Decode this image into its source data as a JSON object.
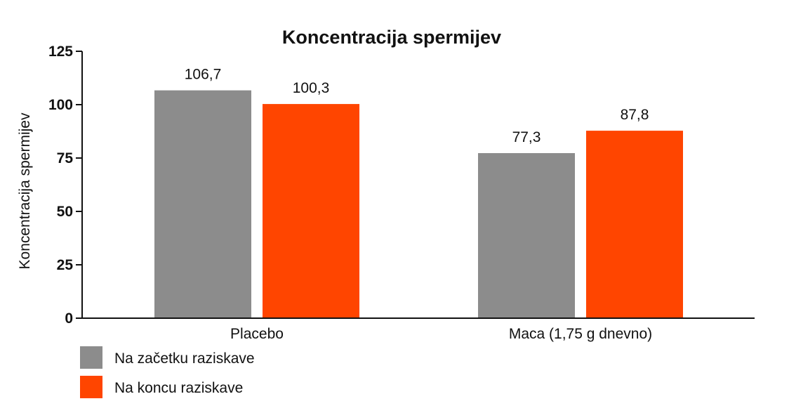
{
  "chart_data": {
    "type": "bar",
    "title": "Koncentracija spermijev",
    "ylabel": "Koncentracija spermijev",
    "xlabel": "",
    "ylim": [
      0,
      125
    ],
    "yticks": [
      0,
      25,
      50,
      75,
      100,
      125
    ],
    "categories": [
      "Placebo",
      "Maca (1,75 g dnevno)"
    ],
    "series": [
      {
        "name": "Na začetku raziskave",
        "color": "#8c8c8c",
        "values": [
          106.7,
          77.3
        ],
        "labels": [
          "106,7",
          "77,3"
        ]
      },
      {
        "name": "Na koncu raziskave",
        "color": "#ff4500",
        "values": [
          100.3,
          87.8
        ],
        "labels": [
          "100,3",
          "87,8"
        ]
      }
    ],
    "grid": false,
    "legend": "bottom-left"
  }
}
